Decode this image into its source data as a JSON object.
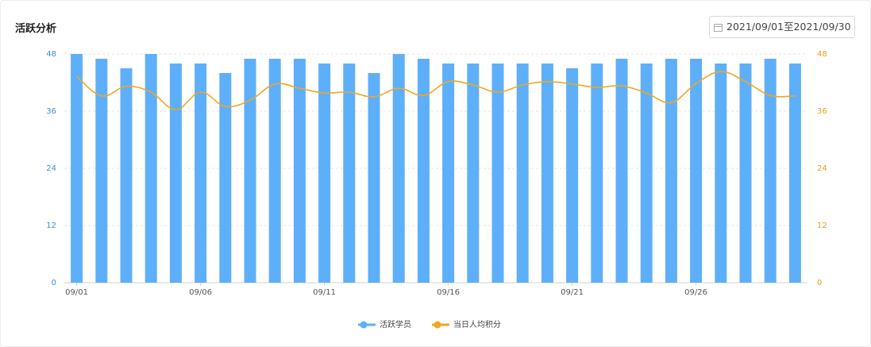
{
  "title": "活跃分析",
  "date_range": "2021/09/01至2021/09/30",
  "chart_data": {
    "type": "combo",
    "categories": [
      "09/01",
      null,
      null,
      null,
      null,
      "09/06",
      null,
      null,
      null,
      null,
      "09/11",
      null,
      null,
      null,
      null,
      "09/16",
      null,
      null,
      null,
      null,
      "09/21",
      null,
      null,
      null,
      null,
      "09/26",
      null,
      null,
      null,
      null
    ],
    "series": [
      {
        "name": "活跃学员",
        "type": "bar",
        "color": "#5eaffa",
        "values": [
          48,
          47,
          45,
          48,
          46,
          46,
          44,
          47,
          47,
          47,
          46,
          46,
          44,
          48,
          47,
          46,
          46,
          46,
          46,
          46,
          45,
          46,
          47,
          46,
          47,
          47,
          46,
          46,
          47,
          46
        ]
      },
      {
        "name": "当日人均积分",
        "type": "line",
        "axis": "y2",
        "color": "#f0a81e",
        "values": [
          43.3,
          39.2,
          41.2,
          40,
          36.3,
          40,
          37,
          38.3,
          41.7,
          40.8,
          39.8,
          40,
          39,
          40.8,
          39.3,
          42.2,
          41.5,
          40,
          41.5,
          42.2,
          41.7,
          41,
          41.3,
          39.8,
          37.8,
          41.8,
          44.3,
          42.2,
          39.3,
          39.2
        ]
      }
    ],
    "ylim": [
      0,
      48
    ],
    "yticks": [
      0,
      12,
      24,
      36,
      48
    ],
    "y2lim": [
      0,
      48
    ],
    "y2ticks": [
      0,
      12,
      24,
      36,
      48
    ],
    "grid": true,
    "legend": "bottom"
  }
}
